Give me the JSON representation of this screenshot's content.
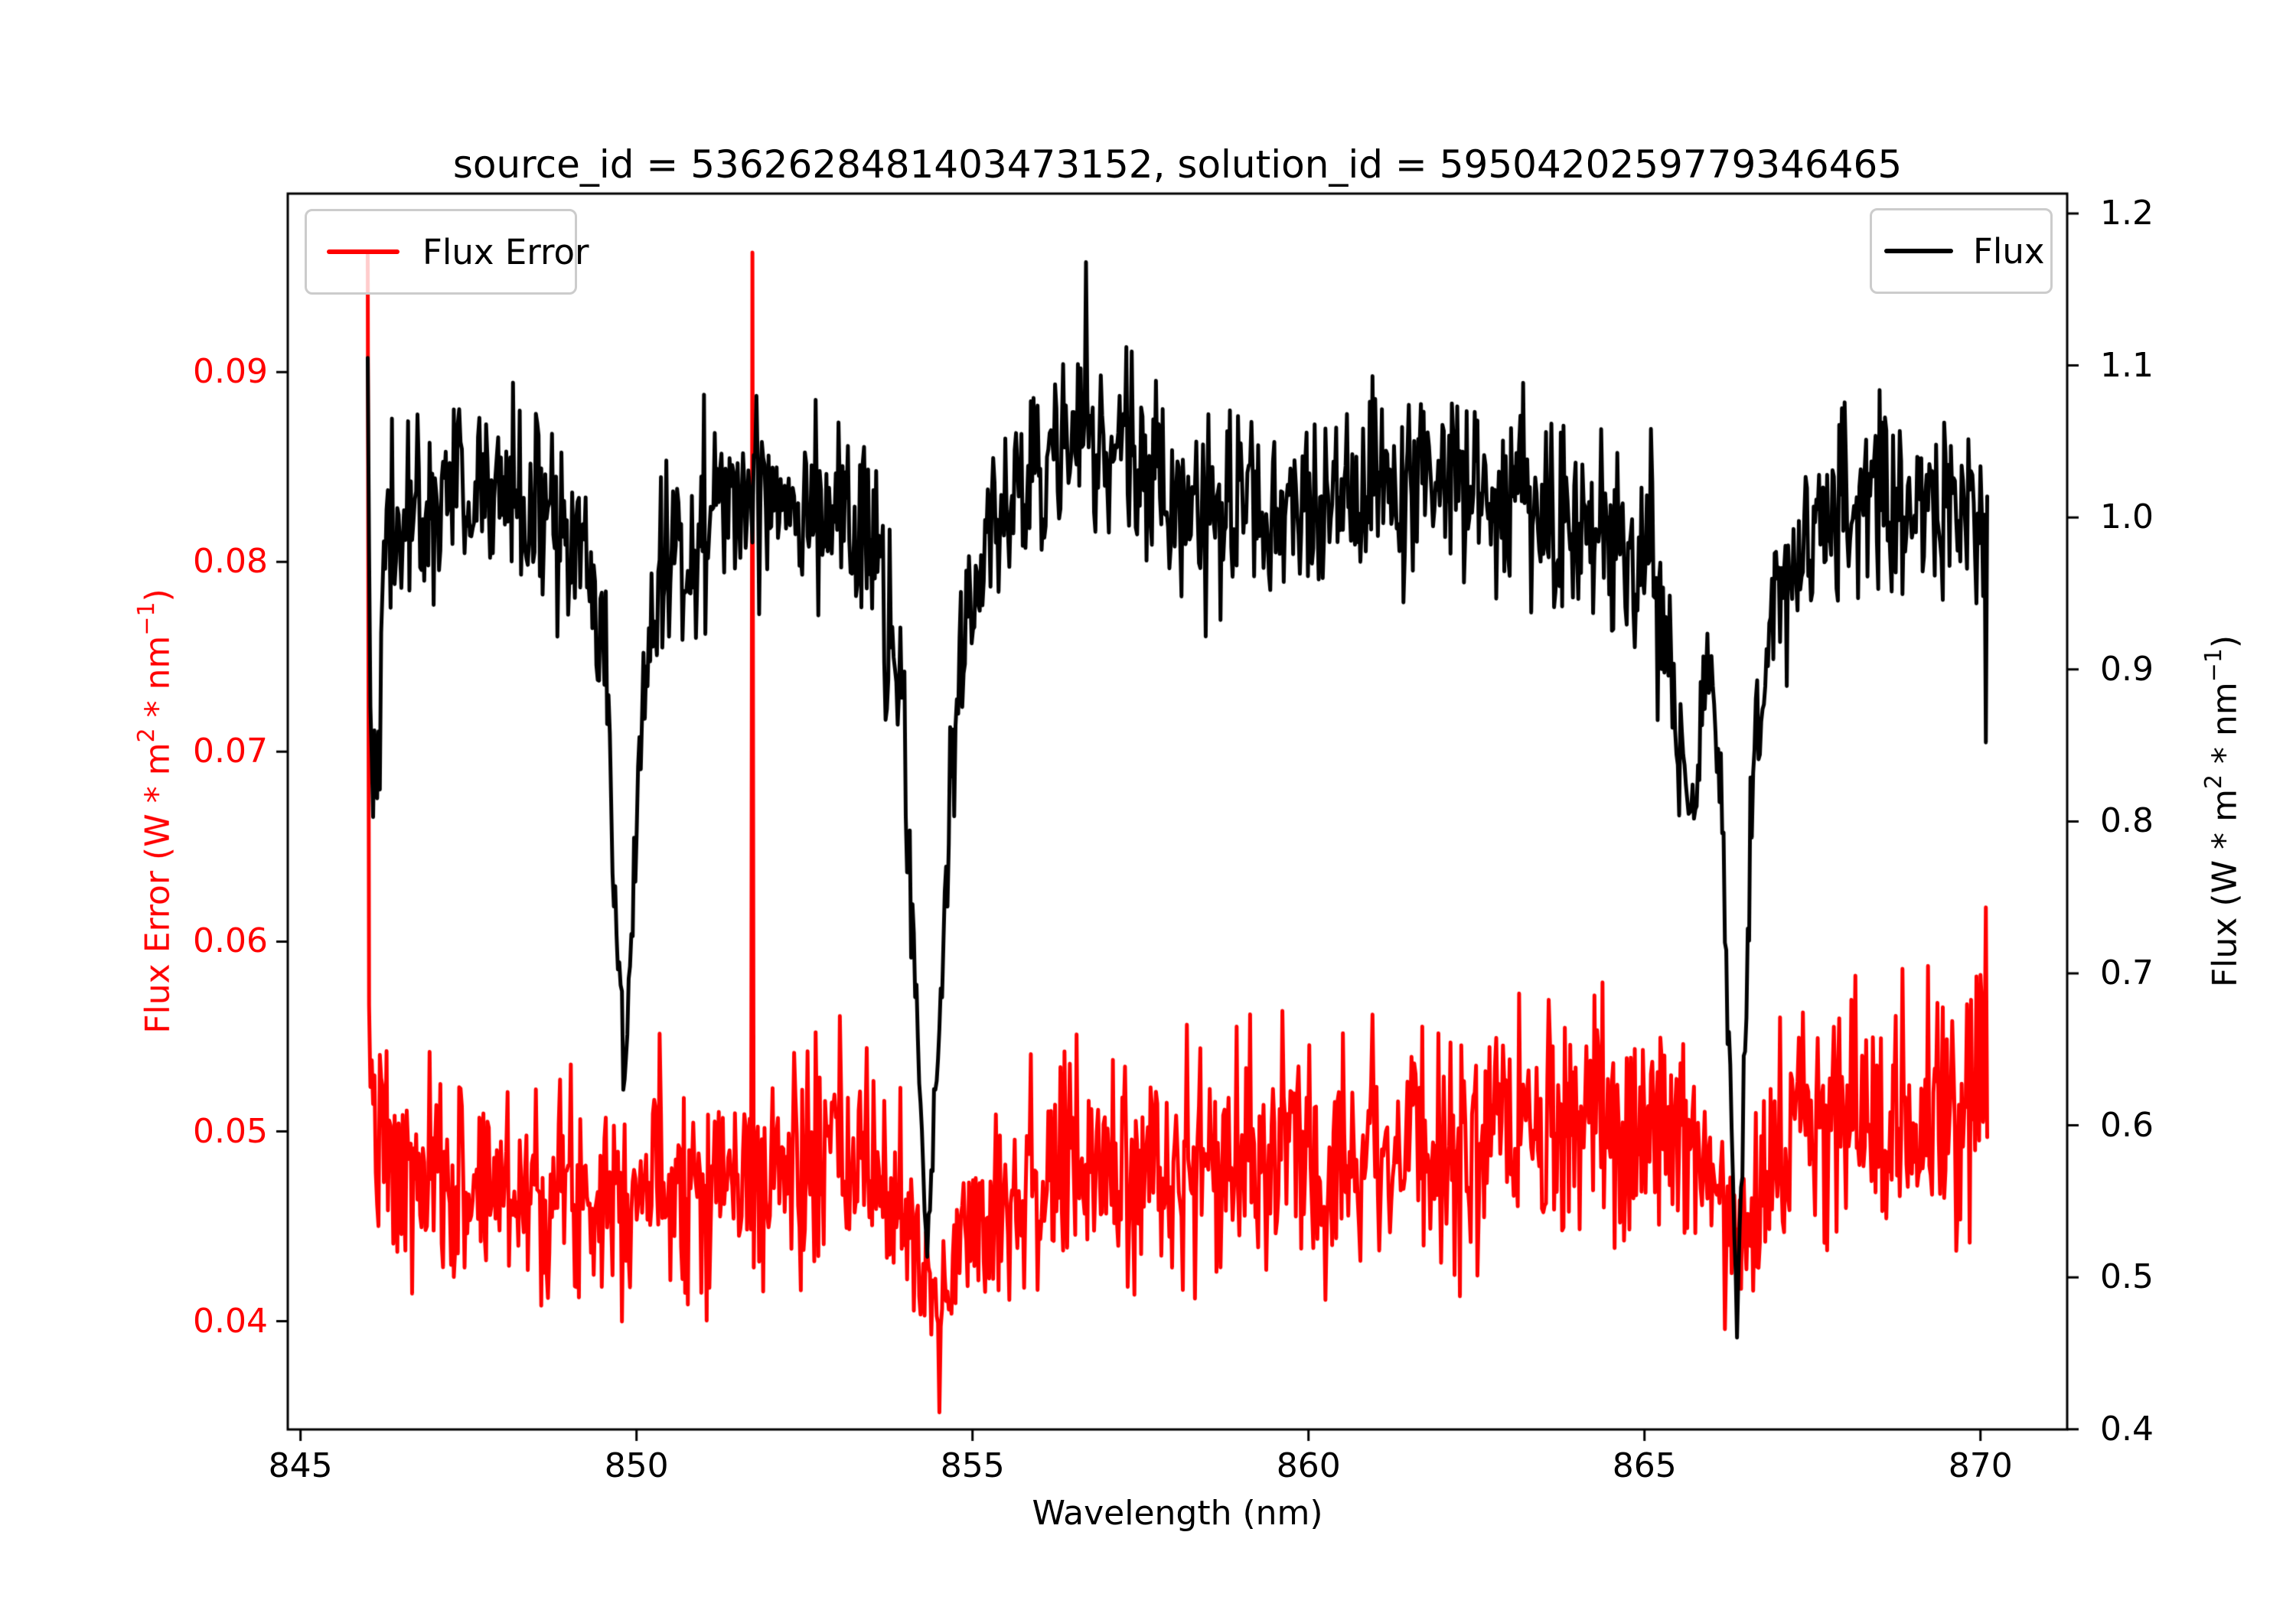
{
  "chart_data": {
    "type": "line",
    "title": "source_id = 5362628481403473152, solution_id = 5950420259779346465",
    "xlabel": "Wavelength (nm)",
    "xlim": [
      844.81,
      871.29
    ],
    "grid": false,
    "x_ticks": [
      {
        "value": 845,
        "label": "845"
      },
      {
        "value": 850,
        "label": "850"
      },
      {
        "value": 855,
        "label": "855"
      },
      {
        "value": 860,
        "label": "860"
      },
      {
        "value": 865,
        "label": "865"
      },
      {
        "value": 870,
        "label": "870"
      }
    ],
    "left_axis": {
      "label": "Flux Error (W * m^2 * nm^-1)",
      "label_parts": [
        {
          "t": "Flux Error (W * m"
        },
        {
          "t": "2",
          "sup": true
        },
        {
          "t": " * nm"
        },
        {
          "t": "−1",
          "sup": true
        },
        {
          "t": ")"
        }
      ],
      "color": "#ff0000",
      "lim": [
        0.0343,
        0.0994
      ],
      "ticks": [
        {
          "value": 0.09,
          "label": "0.09"
        },
        {
          "value": 0.08,
          "label": "0.08"
        },
        {
          "value": 0.07,
          "label": "0.07"
        },
        {
          "value": 0.06,
          "label": "0.06"
        },
        {
          "value": 0.05,
          "label": "0.05"
        },
        {
          "value": 0.04,
          "label": "0.04"
        }
      ]
    },
    "right_axis": {
      "label": "Flux (W * m^2 * nm^-1)",
      "label_parts": [
        {
          "t": "Flux (W * m"
        },
        {
          "t": "2",
          "sup": true
        },
        {
          "t": " * nm"
        },
        {
          "t": "−1",
          "sup": true
        },
        {
          "t": ")"
        }
      ],
      "color": "#000000",
      "lim": [
        0.3999,
        1.2131
      ],
      "ticks": [
        {
          "value": 1.2,
          "label": "1.2"
        },
        {
          "value": 1.1,
          "label": "1.1"
        },
        {
          "value": 1.0,
          "label": "1.0"
        },
        {
          "value": 0.9,
          "label": "0.9"
        },
        {
          "value": 0.8,
          "label": "0.8"
        },
        {
          "value": 0.7,
          "label": "0.7"
        },
        {
          "value": 0.6,
          "label": "0.6"
        },
        {
          "value": 0.5,
          "label": "0.5"
        },
        {
          "value": 0.4,
          "label": "0.4"
        }
      ]
    },
    "series": [
      {
        "name": "Flux Error",
        "color": "#ff0000",
        "axis": "left",
        "line_width": 5,
        "n_points": 1205,
        "x_start": 846.0,
        "x_end": 870.1,
        "noise_sigma": 0.003,
        "noise_damp": {
          "ref": 0.036,
          "span": 0.012,
          "min": 0.3
        },
        "seed": 7,
        "keypoints": [
          [
            846.0,
            0.0585
          ],
          [
            846.1,
            0.0502
          ],
          [
            846.4,
            0.0472
          ],
          [
            847.0,
            0.047
          ],
          [
            848.0,
            0.0473
          ],
          [
            849.0,
            0.0469
          ],
          [
            849.8,
            0.0474
          ],
          [
            850.6,
            0.0477
          ],
          [
            851.4,
            0.0474
          ],
          [
            852.2,
            0.048
          ],
          [
            853.0,
            0.0483
          ],
          [
            853.6,
            0.0478
          ],
          [
            854.05,
            0.0452
          ],
          [
            854.45,
            0.0402
          ],
          [
            854.85,
            0.0447
          ],
          [
            855.3,
            0.0464
          ],
          [
            856.0,
            0.0474
          ],
          [
            857.0,
            0.0481
          ],
          [
            858.0,
            0.0478
          ],
          [
            859.0,
            0.0483
          ],
          [
            860.0,
            0.0488
          ],
          [
            861.0,
            0.0493
          ],
          [
            862.0,
            0.0489
          ],
          [
            863.0,
            0.0494
          ],
          [
            864.0,
            0.0499
          ],
          [
            865.0,
            0.0503
          ],
          [
            865.8,
            0.0494
          ],
          [
            866.35,
            0.045
          ],
          [
            866.9,
            0.0492
          ],
          [
            867.6,
            0.05
          ],
          [
            868.4,
            0.0506
          ],
          [
            869.2,
            0.0509
          ],
          [
            869.7,
            0.0513
          ],
          [
            870.1,
            0.052
          ]
        ],
        "spikes": [
          [
            846.0,
            0.0962
          ],
          [
            851.72,
            0.0963
          ],
          [
            854.5,
            0.0352
          ],
          [
            870.08,
            0.0618
          ]
        ]
      },
      {
        "name": "Flux",
        "color": "#000000",
        "axis": "right",
        "line_width": 5,
        "n_points": 1205,
        "x_start": 846.0,
        "x_end": 870.1,
        "noise_sigma": 0.032,
        "noise_damp": {
          "ref": 0.42,
          "span": 0.55,
          "min": 0.15
        },
        "seed": 42,
        "keypoints": [
          [
            846.0,
            1.045
          ],
          [
            846.08,
            0.815
          ],
          [
            846.3,
            0.985
          ],
          [
            847.0,
            1.012
          ],
          [
            847.8,
            1.02
          ],
          [
            848.6,
            1.002
          ],
          [
            849.2,
            0.975
          ],
          [
            849.55,
            0.89
          ],
          [
            849.82,
            0.625
          ],
          [
            850.1,
            0.88
          ],
          [
            850.4,
            0.975
          ],
          [
            851.2,
            1.005
          ],
          [
            852.0,
            1.022
          ],
          [
            852.8,
            1.012
          ],
          [
            853.5,
            0.985
          ],
          [
            853.95,
            0.87
          ],
          [
            854.33,
            0.515
          ],
          [
            854.7,
            0.85
          ],
          [
            855.1,
            0.975
          ],
          [
            855.8,
            1.025
          ],
          [
            856.6,
            1.048
          ],
          [
            857.4,
            1.038
          ],
          [
            858.2,
            1.01
          ],
          [
            859.0,
            0.995
          ],
          [
            859.8,
            1.0
          ],
          [
            860.6,
            1.008
          ],
          [
            861.4,
            1.012
          ],
          [
            862.2,
            1.028
          ],
          [
            863.0,
            1.015
          ],
          [
            863.8,
            0.995
          ],
          [
            864.5,
            0.985
          ],
          [
            865.1,
            0.975
          ],
          [
            865.7,
            0.795
          ],
          [
            865.95,
            0.915
          ],
          [
            866.15,
            0.8
          ],
          [
            866.38,
            0.468
          ],
          [
            866.62,
            0.85
          ],
          [
            866.95,
            0.95
          ],
          [
            867.6,
            0.995
          ],
          [
            868.3,
            1.015
          ],
          [
            869.0,
            1.005
          ],
          [
            869.6,
            1.02
          ],
          [
            870.1,
            0.975
          ]
        ],
        "spikes": [
          [
            846.0,
            1.105
          ],
          [
            856.68,
            1.168
          ],
          [
            870.08,
            0.852
          ]
        ]
      }
    ],
    "legend_positions": [
      "upper left",
      "upper right"
    ],
    "absorption_lines_nm": [
      849.8,
      854.3,
      866.4
    ],
    "colors": {
      "flux_error": "#ff0000",
      "flux": "#000000",
      "frame": "#000000",
      "legend_border": "#cccccc"
    }
  }
}
